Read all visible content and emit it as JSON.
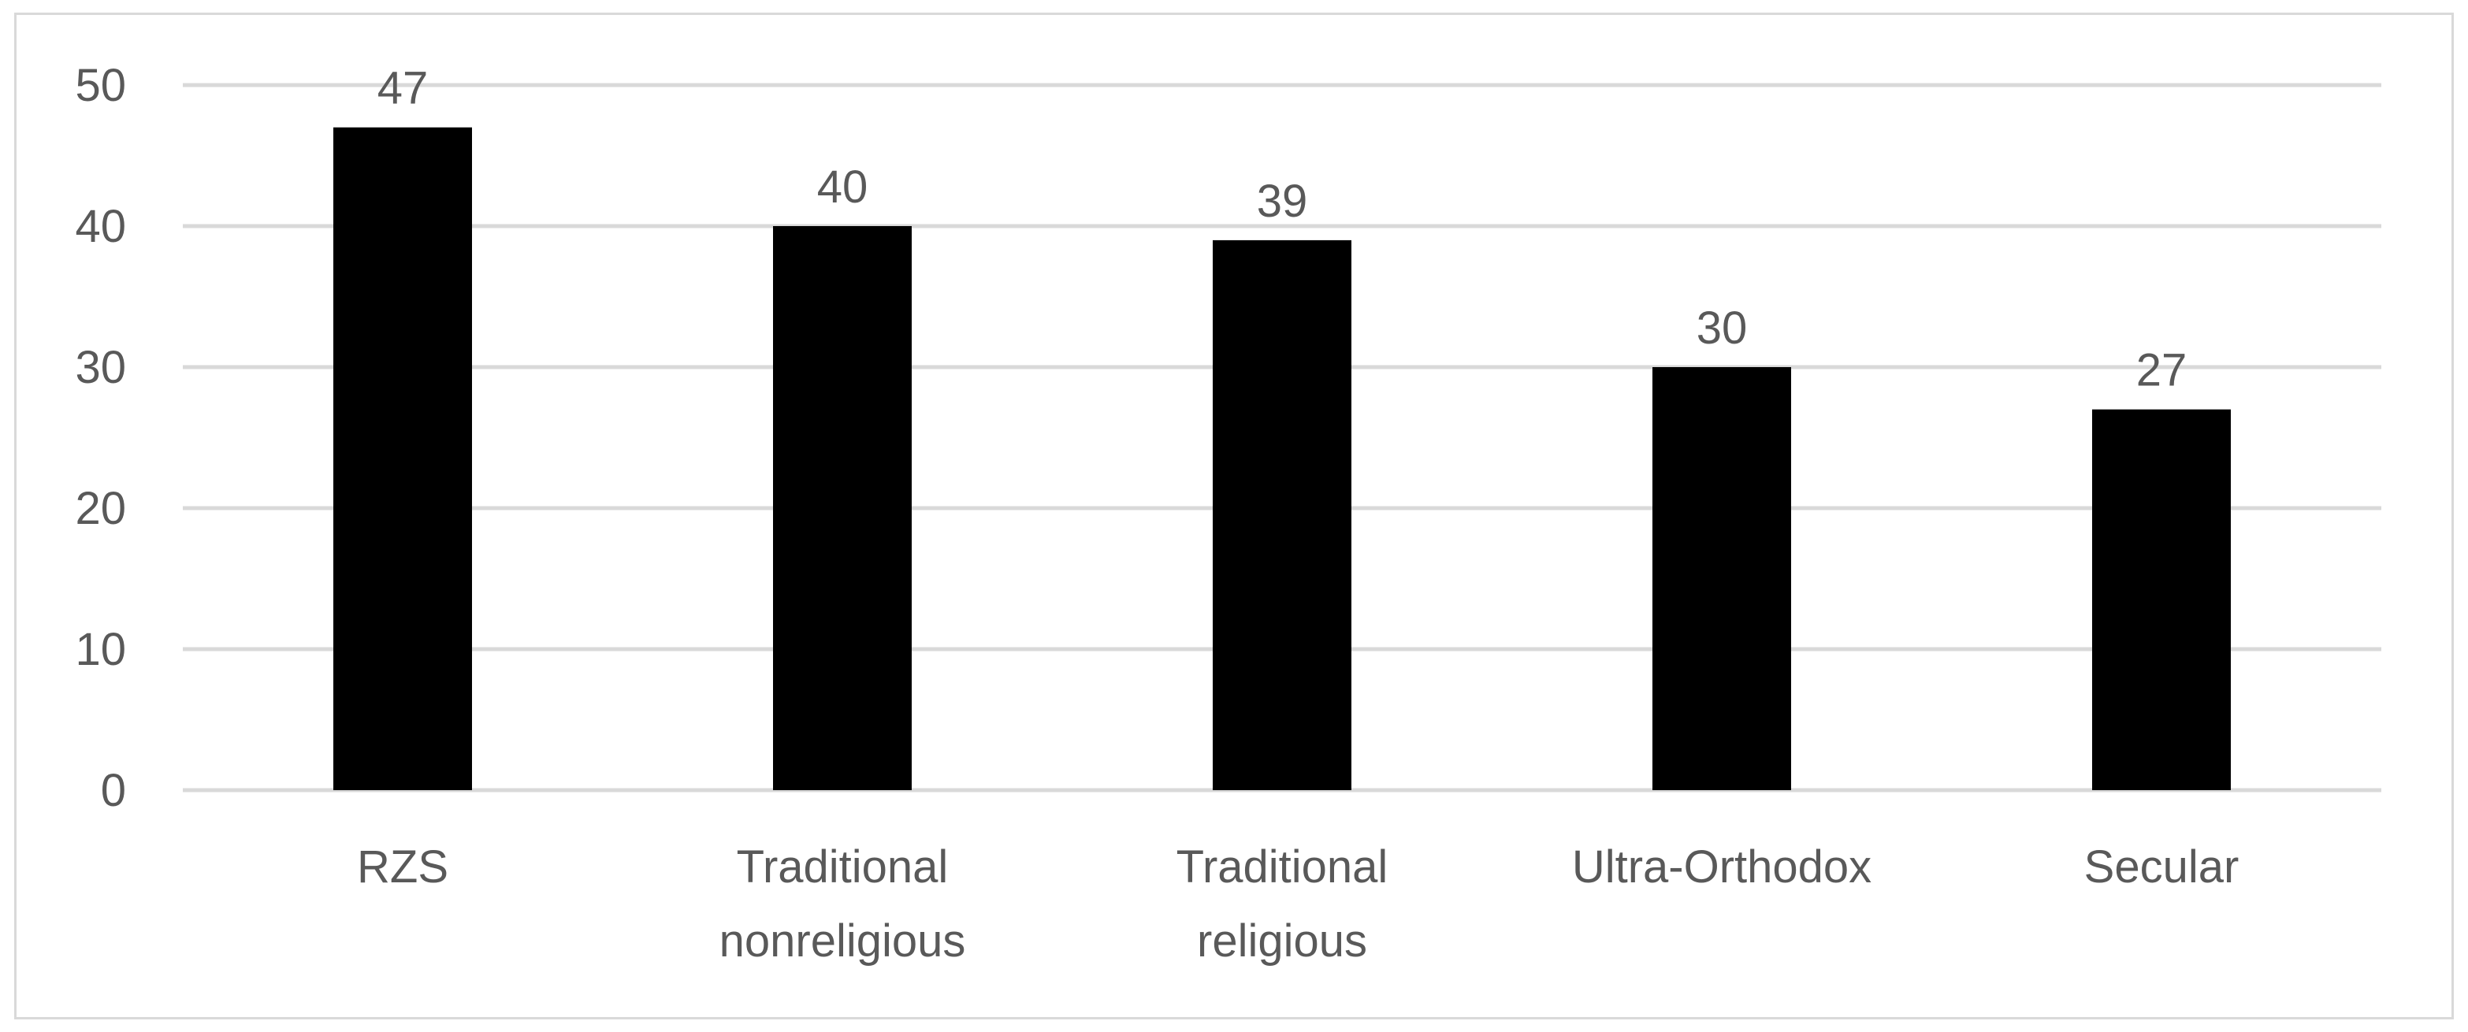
{
  "chart_data": {
    "type": "bar",
    "categories": [
      [
        "RZS"
      ],
      [
        "Traditional",
        "nonreligious"
      ],
      [
        "Traditional",
        "religious"
      ],
      [
        "Ultra-Orthodox"
      ],
      [
        "Secular"
      ]
    ],
    "values": [
      47,
      40,
      39,
      30,
      27
    ],
    "data_labels": [
      "47",
      "40",
      "39",
      "30",
      "27"
    ],
    "yticks": [
      "0",
      "10",
      "20",
      "30",
      "40",
      "50"
    ],
    "ylim": [
      0,
      50
    ],
    "title": "",
    "xlabel": "",
    "ylabel": "",
    "grid": true,
    "legend": "none",
    "colors": {
      "bar": "#000000",
      "grid": "#d9d9d9",
      "text": "#595959",
      "frame": "#d9d9d9"
    }
  }
}
